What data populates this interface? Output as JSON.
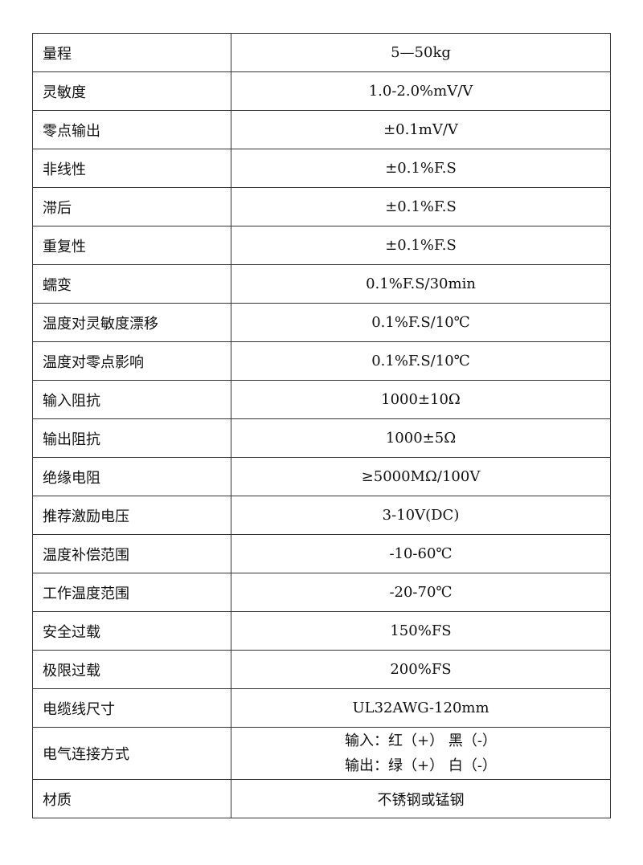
{
  "rows": [
    {
      "label": "量程",
      "value": "5—50kg"
    },
    {
      "label": "灵敏度",
      "value": "1.0-2.0%mV/V"
    },
    {
      "label": "零点输出",
      "value": "±0.1mV/V"
    },
    {
      "label": "非线性",
      "value": "±0.1%F.S"
    },
    {
      "label": "滞后",
      "value": "±0.1%F.S"
    },
    {
      "label": "重复性",
      "value": "±0.1%F.S"
    },
    {
      "label": "蠕变",
      "value": "0.1%F.S/30min"
    },
    {
      "label": "温度对灵敏度漂移",
      "value": "0.1%F.S/10℃"
    },
    {
      "label": "温度对零点影响",
      "value": "0.1%F.S/10℃"
    },
    {
      "label": "输入阻抗",
      "value": "1000±10Ω"
    },
    {
      "label": "输出阻抗",
      "value": "1000±5Ω"
    },
    {
      "label": "绝缘电阻",
      "value": "≥5000MΩ/100V"
    },
    {
      "label": "推荐激励电压",
      "value": "3-10V(DC)"
    },
    {
      "label": "温度补偿范围",
      "value": "-10-60℃"
    },
    {
      "label": "工作温度范围",
      "value": "-20-70℃"
    },
    {
      "label": "安全过载",
      "value": "150%FS"
    },
    {
      "label": "极限过载",
      "value": "200%FS"
    },
    {
      "label": "电缆线尺寸",
      "value": "UL32AWG-120mm"
    }
  ],
  "connection": {
    "label": "电气连接方式",
    "lines": [
      "输入：红（+） 黑（-）",
      "输出：绿（+） 白（-）"
    ]
  },
  "material": {
    "label": "材质",
    "value": "不锈钢或锰钢"
  }
}
